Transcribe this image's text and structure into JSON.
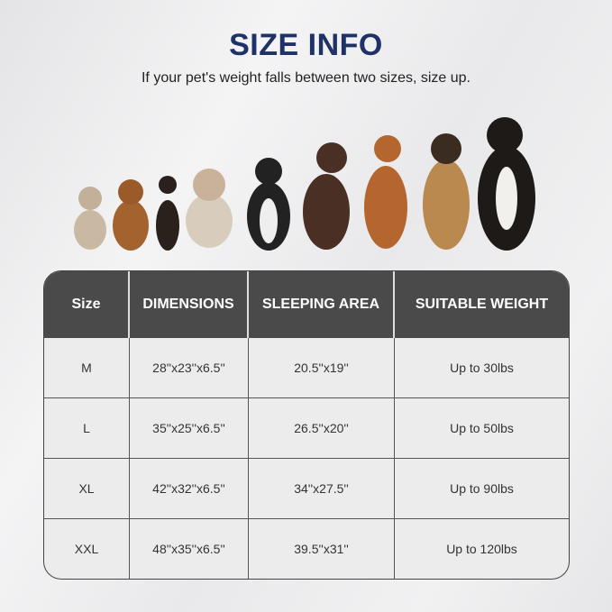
{
  "header": {
    "title": "SIZE INFO",
    "subtitle": "If your pet's weight falls between two sizes, size up."
  },
  "image": {
    "subject": "row of dogs increasing in size",
    "icon": "dogs-photo"
  },
  "table": {
    "columns": [
      "Size",
      "DIMENSIONS",
      "SLEEPING AREA",
      "SUITABLE WEIGHT"
    ],
    "rows": [
      [
        "M",
        "28''x23''x6.5''",
        "20.5''x19''",
        "Up to 30lbs"
      ],
      [
        "L",
        "35''x25''x6.5''",
        "26.5''x20''",
        "Up to 50lbs"
      ],
      [
        "XL",
        "42''x32''x6.5''",
        "34''x27.5''",
        "Up to 90lbs"
      ],
      [
        "XXL",
        "48''x35''x6.5''",
        "39.5''x31''",
        "Up to 120lbs"
      ]
    ]
  },
  "colors": {
    "title": "#1f3268",
    "header_bg": "#4a4a4a"
  }
}
